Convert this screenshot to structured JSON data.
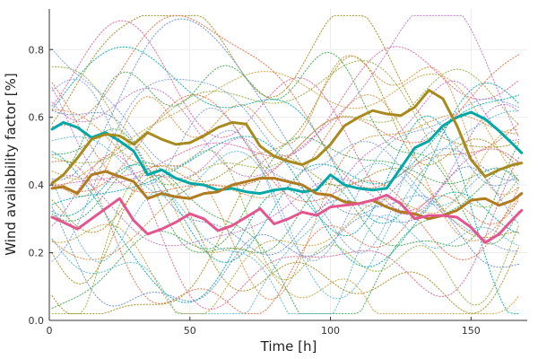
{
  "chart_data": {
    "type": "line",
    "title": "",
    "xlabel": "Time [h]",
    "ylabel": "Wind availability factor [%]",
    "xlim": [
      0,
      170
    ],
    "ylim": [
      0,
      0.92
    ],
    "x_ticks": [
      0,
      50,
      100,
      150
    ],
    "y_ticks": [
      0.0,
      0.2,
      0.4,
      0.6,
      0.8
    ],
    "x_tick_labels": [
      "0",
      "50",
      "100",
      "150"
    ],
    "y_tick_labels": [
      "0.0",
      "0.2",
      "0.4",
      "0.6",
      "0.8"
    ],
    "grid": true,
    "legend": "none",
    "background_scenarios": {
      "style": "dotted",
      "count": 40,
      "x_range": [
        1,
        168
      ],
      "value_range": [
        0.02,
        0.9
      ],
      "colors": [
        "#00a9ad",
        "#a48c1b",
        "#e26f46",
        "#3da44d",
        "#6b8ed6",
        "#c271d2",
        "#e35f96",
        "#5bb8d6",
        "#8fb03b",
        "#d98b3a",
        "#7a9fe3",
        "#c8a13a"
      ]
    },
    "series": [
      {
        "color": "#00a8a8",
        "style": "solid",
        "x": [
          1,
          5,
          10,
          15,
          20,
          25,
          30,
          35,
          40,
          45,
          50,
          55,
          60,
          65,
          70,
          75,
          80,
          85,
          90,
          95,
          100,
          105,
          110,
          115,
          120,
          125,
          130,
          135,
          140,
          145,
          150,
          155,
          160,
          165,
          168
        ],
        "values": [
          0.565,
          0.585,
          0.57,
          0.54,
          0.555,
          0.53,
          0.5,
          0.43,
          0.445,
          0.42,
          0.405,
          0.4,
          0.385,
          0.39,
          0.38,
          0.375,
          0.385,
          0.39,
          0.38,
          0.385,
          0.43,
          0.4,
          0.39,
          0.385,
          0.39,
          0.45,
          0.51,
          0.53,
          0.575,
          0.6,
          0.615,
          0.595,
          0.56,
          0.52,
          0.495
        ]
      },
      {
        "color": "#a88a1c",
        "style": "solid",
        "x": [
          1,
          5,
          10,
          15,
          20,
          25,
          30,
          35,
          40,
          45,
          50,
          55,
          60,
          65,
          70,
          75,
          80,
          85,
          90,
          95,
          100,
          105,
          110,
          115,
          120,
          125,
          130,
          135,
          140,
          145,
          150,
          155,
          160,
          165,
          168
        ],
        "values": [
          0.405,
          0.43,
          0.48,
          0.535,
          0.55,
          0.545,
          0.52,
          0.555,
          0.535,
          0.52,
          0.525,
          0.545,
          0.57,
          0.585,
          0.58,
          0.515,
          0.485,
          0.47,
          0.46,
          0.48,
          0.52,
          0.575,
          0.6,
          0.62,
          0.61,
          0.605,
          0.63,
          0.68,
          0.655,
          0.575,
          0.475,
          0.425,
          0.445,
          0.46,
          0.465
        ]
      },
      {
        "color": "#b07a1e",
        "style": "solid",
        "x": [
          1,
          5,
          10,
          15,
          20,
          25,
          30,
          35,
          40,
          45,
          50,
          55,
          60,
          65,
          70,
          75,
          80,
          85,
          90,
          95,
          100,
          105,
          110,
          115,
          120,
          125,
          130,
          135,
          140,
          145,
          150,
          155,
          160,
          165,
          168
        ],
        "values": [
          0.39,
          0.395,
          0.375,
          0.43,
          0.44,
          0.425,
          0.41,
          0.36,
          0.375,
          0.365,
          0.36,
          0.375,
          0.38,
          0.4,
          0.41,
          0.42,
          0.42,
          0.41,
          0.4,
          0.375,
          0.37,
          0.35,
          0.345,
          0.355,
          0.335,
          0.32,
          0.315,
          0.3,
          0.31,
          0.325,
          0.355,
          0.36,
          0.34,
          0.355,
          0.375
        ]
      },
      {
        "color": "#e4558e",
        "style": "solid",
        "x": [
          1,
          5,
          10,
          15,
          20,
          25,
          30,
          35,
          40,
          45,
          50,
          55,
          60,
          65,
          70,
          75,
          80,
          85,
          90,
          95,
          100,
          105,
          110,
          115,
          120,
          125,
          130,
          135,
          140,
          145,
          150,
          155,
          160,
          165,
          168
        ],
        "values": [
          0.305,
          0.29,
          0.27,
          0.3,
          0.33,
          0.36,
          0.295,
          0.255,
          0.27,
          0.29,
          0.315,
          0.3,
          0.265,
          0.28,
          0.305,
          0.33,
          0.285,
          0.3,
          0.32,
          0.31,
          0.335,
          0.34,
          0.345,
          0.355,
          0.37,
          0.345,
          0.3,
          0.31,
          0.31,
          0.305,
          0.275,
          0.23,
          0.255,
          0.3,
          0.325
        ]
      }
    ]
  }
}
